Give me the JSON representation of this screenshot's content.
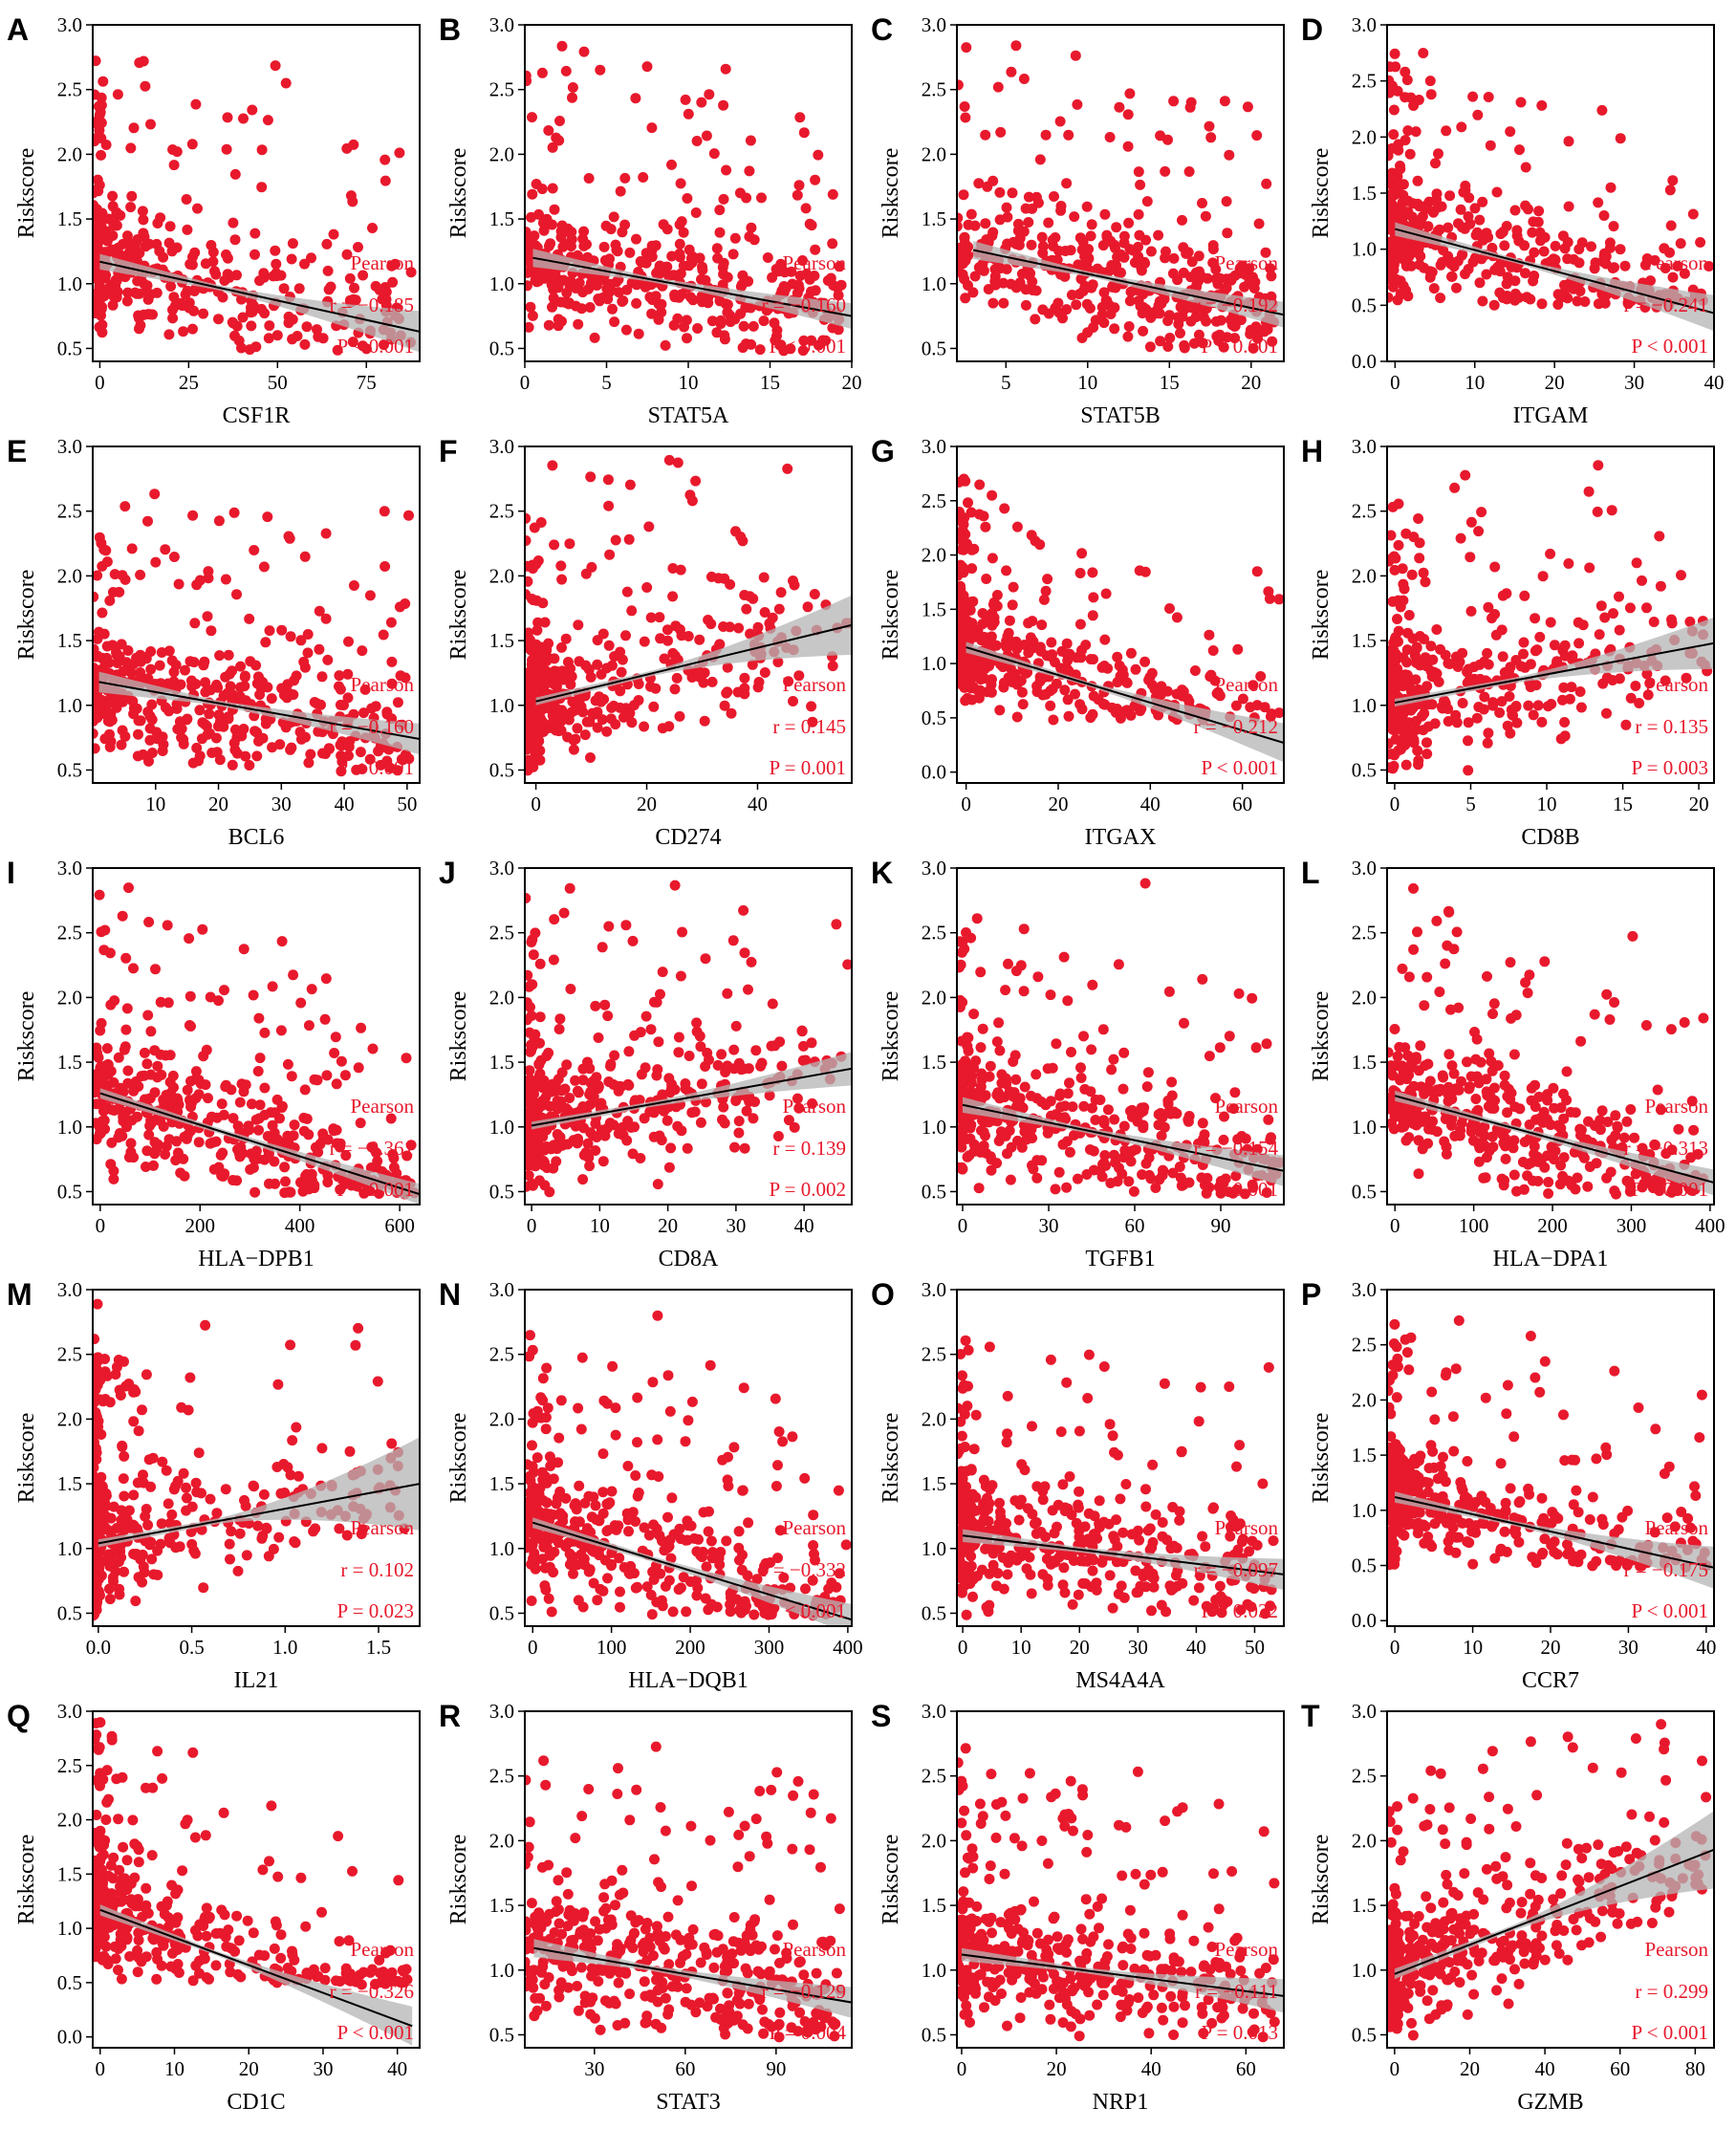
{
  "figure": {
    "point_color": "#e8192c",
    "ci_color": "#b4b4b4",
    "line_color": "#000000"
  },
  "chart_data": [
    {
      "type": "scatter",
      "panel": "A",
      "xlabel": "CSF1R",
      "ylabel": "Riskscore",
      "xlim": [
        -2,
        90
      ],
      "ylim": [
        0.4,
        3.0
      ],
      "xticks": [
        "0",
        "25",
        "50",
        "75"
      ],
      "yticks": [
        "0.5",
        "1.0",
        "1.5",
        "2.0",
        "2.5",
        "3.0"
      ],
      "fit": {
        "x": [
          0,
          90
        ],
        "y": [
          1.17,
          0.63
        ]
      },
      "ci": [
        0.06,
        0.02,
        0.03,
        0.16
      ],
      "legend": "Pearson",
      "r": "r = −0.185",
      "p": "P < 0.001",
      "xmax_pt": 90,
      "skew": 2.6
    },
    {
      "type": "scatter",
      "panel": "B",
      "xlabel": "STAT5A",
      "ylabel": "Riskscore",
      "xlim": [
        0,
        20
      ],
      "ylim": [
        0.4,
        3.0
      ],
      "xticks": [
        "0",
        "5",
        "10",
        "15",
        "20"
      ],
      "yticks": [
        "0.5",
        "1.0",
        "1.5",
        "2.0",
        "2.5",
        "3.0"
      ],
      "fit": {
        "x": [
          0.5,
          20
        ],
        "y": [
          1.2,
          0.75
        ]
      },
      "ci": [
        0.07,
        0.02,
        0.03,
        0.1
      ],
      "legend": "Pearson",
      "r": "r = −0.160",
      "p": "P < 0.001",
      "xmax_pt": 20,
      "skew": 1.4
    },
    {
      "type": "scatter",
      "panel": "C",
      "xlabel": "STAT5B",
      "ylabel": "Riskscore",
      "xlim": [
        2,
        22
      ],
      "ylim": [
        0.4,
        3.0
      ],
      "xticks": [
        "5",
        "10",
        "15",
        "20"
      ],
      "yticks": [
        "0.5",
        "1.0",
        "1.5",
        "2.0",
        "2.5",
        "3.0"
      ],
      "fit": {
        "x": [
          3,
          22
        ],
        "y": [
          1.26,
          0.76
        ]
      },
      "ci": [
        0.07,
        0.02,
        0.03,
        0.1
      ],
      "legend": "Pearson",
      "r": "r = −0.192",
      "p": "P < 0.001",
      "xmax_pt": 22,
      "skew": 1.0
    },
    {
      "type": "scatter",
      "panel": "D",
      "xlabel": "ITGAM",
      "ylabel": "Riskscore",
      "xlim": [
        -1,
        40
      ],
      "ylim": [
        0.0,
        3.0
      ],
      "xticks": [
        "0",
        "10",
        "20",
        "30",
        "40"
      ],
      "yticks": [
        "0.0",
        "0.5",
        "1.0",
        "1.5",
        "2.0",
        "2.5",
        "3.0"
      ],
      "fit": {
        "x": [
          0,
          40
        ],
        "y": [
          1.18,
          0.43
        ]
      },
      "ci": [
        0.06,
        0.02,
        0.04,
        0.16
      ],
      "legend": "Pearson",
      "r": "r = −0.241",
      "p": "P < 0.001",
      "xmax_pt": 40,
      "skew": 2.6
    },
    {
      "type": "scatter",
      "panel": "E",
      "xlabel": "BCL6",
      "ylabel": "Riskscore",
      "xlim": [
        0,
        52
      ],
      "ylim": [
        0.4,
        3.0
      ],
      "xticks": [
        "10",
        "20",
        "30",
        "40",
        "50"
      ],
      "yticks": [
        "0.5",
        "1.0",
        "1.5",
        "2.0",
        "2.5",
        "3.0"
      ],
      "fit": {
        "x": [
          1,
          52
        ],
        "y": [
          1.18,
          0.74
        ]
      },
      "ci": [
        0.08,
        0.02,
        0.03,
        0.12
      ],
      "legend": "Pearson",
      "r": "r = −0.160",
      "p": "P < 0.001",
      "xmax_pt": 52,
      "skew": 1.5
    },
    {
      "type": "scatter",
      "panel": "F",
      "xlabel": "CD274",
      "ylabel": "Riskscore",
      "xlim": [
        -2,
        57
      ],
      "ylim": [
        0.4,
        3.0
      ],
      "xticks": [
        "0",
        "20",
        "40"
      ],
      "yticks": [
        "0.5",
        "1.0",
        "1.5",
        "2.0",
        "2.5",
        "3.0"
      ],
      "fit": {
        "x": [
          0,
          57
        ],
        "y": [
          1.03,
          1.62
        ]
      },
      "ci": [
        0.03,
        0.02,
        0.05,
        0.23
      ],
      "legend": "Pearson",
      "r": "r = 0.145",
      "p": "P = 0.001",
      "xmax_pt": 57,
      "skew": 3.5
    },
    {
      "type": "scatter",
      "panel": "G",
      "xlabel": "ITGAX",
      "ylabel": "Riskscore",
      "xlim": [
        -2,
        69
      ],
      "ylim": [
        -0.1,
        3.0
      ],
      "xticks": [
        "0",
        "20",
        "40",
        "60"
      ],
      "yticks": [
        "0.0",
        "0.5",
        "1.0",
        "1.5",
        "2.0",
        "2.5",
        "3.0"
      ],
      "fit": {
        "x": [
          0,
          69
        ],
        "y": [
          1.15,
          0.27
        ]
      },
      "ci": [
        0.05,
        0.02,
        0.05,
        0.18
      ],
      "legend": "Pearson",
      "r": "r = −0.212",
      "p": "P < 0.001",
      "xmax_pt": 69,
      "skew": 3.0
    },
    {
      "type": "scatter",
      "panel": "H",
      "xlabel": "CD8B",
      "ylabel": "Riskscore",
      "xlim": [
        -0.5,
        21
      ],
      "ylim": [
        0.4,
        3.0
      ],
      "xticks": [
        "0",
        "5",
        "10",
        "15",
        "20"
      ],
      "yticks": [
        "0.5",
        "1.0",
        "1.5",
        "2.0",
        "2.5",
        "3.0"
      ],
      "fit": {
        "x": [
          0,
          21
        ],
        "y": [
          1.02,
          1.48
        ]
      },
      "ci": [
        0.03,
        0.02,
        0.05,
        0.2
      ],
      "legend": "Pearson",
      "r": "r = 0.135",
      "p": "P = 0.003",
      "xmax_pt": 21,
      "skew": 3.0
    },
    {
      "type": "scatter",
      "panel": "I",
      "xlabel": "HLA−DPB1",
      "ylabel": "Riskscore",
      "xlim": [
        -15,
        640
      ],
      "ylim": [
        0.4,
        3.0
      ],
      "xticks": [
        "0",
        "200",
        "400",
        "600"
      ],
      "yticks": [
        "0.5",
        "1.0",
        "1.5",
        "2.0",
        "2.5",
        "3.0"
      ],
      "fit": {
        "x": [
          0,
          640
        ],
        "y": [
          1.26,
          0.48
        ]
      },
      "ci": [
        0.04,
        0.02,
        0.03,
        0.08
      ],
      "legend": "Pearson",
      "r": "r = −0.361",
      "p": "P < 0.001",
      "xmax_pt": 640,
      "skew": 1.5
    },
    {
      "type": "scatter",
      "panel": "J",
      "xlabel": "CD8A",
      "ylabel": "Riskscore",
      "xlim": [
        -1,
        47
      ],
      "ylim": [
        0.4,
        3.0
      ],
      "xticks": [
        "0",
        "10",
        "20",
        "30",
        "40"
      ],
      "yticks": [
        "0.5",
        "1.0",
        "1.5",
        "2.0",
        "2.5",
        "3.0"
      ],
      "fit": {
        "x": [
          0,
          47
        ],
        "y": [
          1.01,
          1.45
        ]
      },
      "ci": [
        0.03,
        0.02,
        0.05,
        0.13
      ],
      "legend": "Pearson",
      "r": "r = 0.139",
      "p": "P = 0.002",
      "xmax_pt": 47,
      "skew": 2.4
    },
    {
      "type": "scatter",
      "panel": "K",
      "xlabel": "TGFB1",
      "ylabel": "Riskscore",
      "xlim": [
        -2,
        112
      ],
      "ylim": [
        0.4,
        3.0
      ],
      "xticks": [
        "0",
        "30",
        "60",
        "90"
      ],
      "yticks": [
        "0.5",
        "1.0",
        "1.5",
        "2.0",
        "2.5",
        "3.0"
      ],
      "fit": {
        "x": [
          0,
          112
        ],
        "y": [
          1.17,
          0.66
        ]
      },
      "ci": [
        0.06,
        0.02,
        0.03,
        0.12
      ],
      "legend": "Pearson",
      "r": "r = −0.154",
      "p": "P < 0.001",
      "xmax_pt": 112,
      "skew": 2.0
    },
    {
      "type": "scatter",
      "panel": "L",
      "xlabel": "HLA−DPA1",
      "ylabel": "Riskscore",
      "xlim": [
        -10,
        405
      ],
      "ylim": [
        0.4,
        3.0
      ],
      "xticks": [
        "0",
        "100",
        "200",
        "300",
        "400"
      ],
      "yticks": [
        "0.5",
        "1.0",
        "1.5",
        "2.0",
        "2.5",
        "3.0"
      ],
      "fit": {
        "x": [
          0,
          405
        ],
        "y": [
          1.24,
          0.57
        ]
      },
      "ci": [
        0.04,
        0.02,
        0.03,
        0.1
      ],
      "legend": "Pearson",
      "r": "r = −0.313",
      "p": "P < 0.001",
      "xmax_pt": 405,
      "skew": 1.6
    },
    {
      "type": "scatter",
      "panel": "M",
      "xlabel": "IL21",
      "ylabel": "Riskscore",
      "xlim": [
        -0.03,
        1.72
      ],
      "ylim": [
        0.4,
        3.0
      ],
      "xticks": [
        "0.0",
        "0.5",
        "1.0",
        "1.5"
      ],
      "yticks": [
        "0.5",
        "1.0",
        "1.5",
        "2.0",
        "2.5",
        "3.0"
      ],
      "fit": {
        "x": [
          0,
          1.72
        ],
        "y": [
          1.04,
          1.5
        ]
      },
      "ci": [
        0.03,
        0.02,
        0.05,
        0.36
      ],
      "legend": "Pearson",
      "r": "r = 0.102",
      "p": "P = 0.023",
      "xmax_pt": 1.72,
      "skew": 4.5
    },
    {
      "type": "scatter",
      "panel": "N",
      "xlabel": "HLA−DQB1",
      "ylabel": "Riskscore",
      "xlim": [
        -10,
        405
      ],
      "ylim": [
        0.4,
        3.0
      ],
      "xticks": [
        "0",
        "100",
        "200",
        "300",
        "400"
      ],
      "yticks": [
        "0.5",
        "1.0",
        "1.5",
        "2.0",
        "2.5",
        "3.0"
      ],
      "fit": {
        "x": [
          0,
          405
        ],
        "y": [
          1.2,
          0.45
        ]
      },
      "ci": [
        0.04,
        0.02,
        0.03,
        0.12
      ],
      "legend": "Pearson",
      "r": "r = −0.332",
      "p": "P < 0.001",
      "xmax_pt": 405,
      "skew": 1.8
    },
    {
      "type": "scatter",
      "panel": "O",
      "xlabel": "MS4A4A",
      "ylabel": "Riskscore",
      "xlim": [
        -1,
        55
      ],
      "ylim": [
        0.4,
        3.0
      ],
      "xticks": [
        "0",
        "10",
        "20",
        "30",
        "40",
        "50"
      ],
      "yticks": [
        "0.5",
        "1.0",
        "1.5",
        "2.0",
        "2.5",
        "3.0"
      ],
      "fit": {
        "x": [
          0,
          55
        ],
        "y": [
          1.1,
          0.8
        ]
      },
      "ci": [
        0.05,
        0.02,
        0.04,
        0.12
      ],
      "legend": "Pearson",
      "r": "r = −0.097",
      "p": "P = 0.032",
      "xmax_pt": 55,
      "skew": 2.2
    },
    {
      "type": "scatter",
      "panel": "P",
      "xlabel": "CCR7",
      "ylabel": "Riskscore",
      "xlim": [
        -1,
        41
      ],
      "ylim": [
        -0.05,
        3.0
      ],
      "xticks": [
        "0",
        "10",
        "20",
        "30",
        "40"
      ],
      "yticks": [
        "0.0",
        "0.5",
        "1.0",
        "1.5",
        "2.0",
        "2.5",
        "3.0"
      ],
      "fit": {
        "x": [
          0,
          41
        ],
        "y": [
          1.12,
          0.48
        ]
      },
      "ci": [
        0.05,
        0.02,
        0.04,
        0.19
      ],
      "legend": "Pearson",
      "r": "r = −0.175",
      "p": "P < 0.001",
      "xmax_pt": 41,
      "skew": 3.0
    },
    {
      "type": "scatter",
      "panel": "Q",
      "xlabel": "CD1C",
      "ylabel": "Riskscore",
      "xlim": [
        -1,
        43
      ],
      "ylim": [
        -0.1,
        3.0
      ],
      "xticks": [
        "0",
        "10",
        "20",
        "30",
        "40"
      ],
      "yticks": [
        "0.0",
        "0.5",
        "1.0",
        "1.5",
        "2.0",
        "2.5",
        "3.0"
      ],
      "fit": {
        "x": [
          0,
          42
        ],
        "y": [
          1.17,
          0.1
        ]
      },
      "ci": [
        0.05,
        0.02,
        0.04,
        0.18
      ],
      "legend": "Pearson",
      "r": "r = −0.326",
      "p": "P < 0.001",
      "xmax_pt": 42,
      "skew": 3.0
    },
    {
      "type": "scatter",
      "panel": "R",
      "xlabel": "STAT3",
      "ylabel": "Riskscore",
      "xlim": [
        7,
        115
      ],
      "ylim": [
        0.4,
        3.0
      ],
      "xticks": [
        "30",
        "60",
        "90"
      ],
      "yticks": [
        "0.5",
        "1.0",
        "1.5",
        "2.0",
        "2.5",
        "3.0"
      ],
      "fit": {
        "x": [
          10,
          115
        ],
        "y": [
          1.17,
          0.75
        ]
      },
      "ci": [
        0.07,
        0.02,
        0.03,
        0.12
      ],
      "legend": "Pearson",
      "r": "r = −0.129",
      "p": "P = 0.004",
      "xmax_pt": 115,
      "skew": 1.2
    },
    {
      "type": "scatter",
      "panel": "S",
      "xlabel": "NRP1",
      "ylabel": "Riskscore",
      "xlim": [
        -1,
        68
      ],
      "ylim": [
        0.4,
        3.0
      ],
      "xticks": [
        "0",
        "20",
        "40",
        "60"
      ],
      "yticks": [
        "0.5",
        "1.0",
        "1.5",
        "2.0",
        "2.5",
        "3.0"
      ],
      "fit": {
        "x": [
          0,
          68
        ],
        "y": [
          1.12,
          0.8
        ]
      },
      "ci": [
        0.05,
        0.02,
        0.04,
        0.13
      ],
      "legend": "Pearson",
      "r": "r = −0.111",
      "p": "P = 0.013",
      "xmax_pt": 68,
      "skew": 1.8
    },
    {
      "type": "scatter",
      "panel": "T",
      "xlabel": "GZMB",
      "ylabel": "Riskscore",
      "xlim": [
        -2,
        85
      ],
      "ylim": [
        0.4,
        3.0
      ],
      "xticks": [
        "0",
        "20",
        "40",
        "60",
        "80"
      ],
      "yticks": [
        "0.5",
        "1.0",
        "1.5",
        "2.0",
        "2.5",
        "3.0"
      ],
      "fit": {
        "x": [
          0,
          85
        ],
        "y": [
          0.97,
          1.93
        ]
      },
      "ci": [
        0.04,
        0.02,
        0.06,
        0.3
      ],
      "legend": "Pearson",
      "r": "r = 0.299",
      "p": "P < 0.001",
      "xmax_pt": 85,
      "skew": 2.6
    }
  ]
}
